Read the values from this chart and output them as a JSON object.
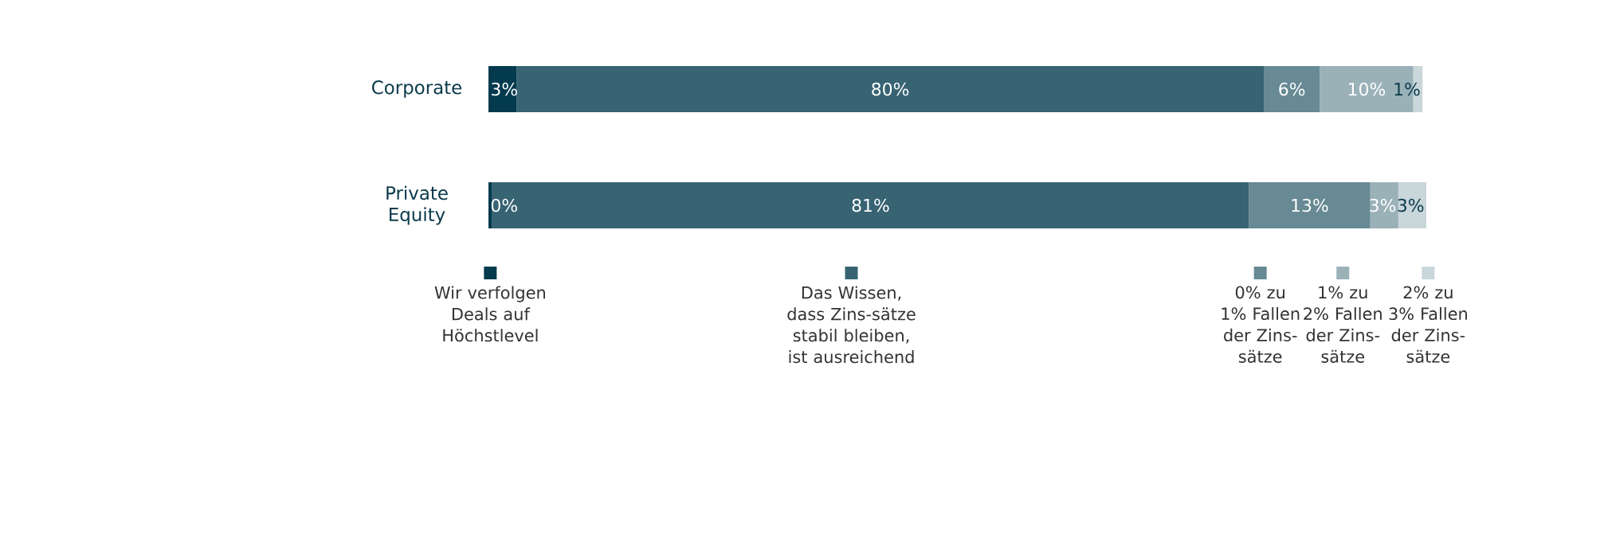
{
  "chart_data": {
    "type": "bar",
    "orientation": "horizontal",
    "stacked": true,
    "legend": "bottom",
    "categories": [
      "Corporate",
      "Private Equity"
    ],
    "series": [
      {
        "name": "Wir verfolgen Deals auf Höchstlevel",
        "color": "#033a4e",
        "values": [
          3,
          0.4
        ],
        "value_labels": [
          "3%",
          "0%"
        ]
      },
      {
        "name": "Das Wissen, dass Zins-sätze stabil bleiben, ist ausreichend",
        "color": "#376373",
        "values": [
          80,
          81
        ],
        "value_labels": [
          "80%",
          "81%"
        ]
      },
      {
        "name": "0% zu 1% Fallen der Zins-sätze",
        "color": "#678a94",
        "values": [
          6,
          13
        ],
        "value_labels": [
          "6%",
          "13%"
        ]
      },
      {
        "name": "1% zu 2% Fallen der Zins-sätze",
        "color": "#9ab1b8",
        "values": [
          10,
          3
        ],
        "value_labels": [
          "10%",
          "3%"
        ]
      },
      {
        "name": "2% zu 3% Fallen der Zins-sätze",
        "color": "#c9d6da",
        "values": [
          1,
          3
        ],
        "value_labels": [
          "1%",
          "3%"
        ]
      }
    ]
  }
}
